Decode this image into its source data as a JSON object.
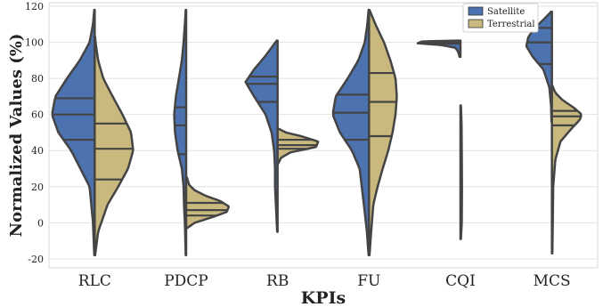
{
  "chart_data": {
    "type": "violin",
    "split": true,
    "xlabel": "KPIs",
    "ylabel": "Normalized Values (%)",
    "ylim": [
      -25,
      122
    ],
    "yticks": [
      -20,
      0,
      20,
      40,
      60,
      80,
      100,
      120
    ],
    "grid": true,
    "legend_position": "top-right",
    "categories": [
      "RLC",
      "PDCP",
      "RB",
      "FU",
      "CQI",
      "MCS"
    ],
    "series": [
      {
        "name": "Satellite",
        "color": "#4c72b0",
        "side": "left",
        "violins": [
          {
            "min": -18,
            "max": 118,
            "quartiles": [
              46,
              60,
              69
            ],
            "shape": [
              [
                -18,
                0.01
              ],
              [
                0,
                0.04
              ],
              [
                20,
                0.12
              ],
              [
                40,
                0.55
              ],
              [
                50,
                0.85
              ],
              [
                60,
                1.0
              ],
              [
                70,
                0.92
              ],
              [
                80,
                0.65
              ],
              [
                90,
                0.35
              ],
              [
                100,
                0.12
              ],
              [
                110,
                0.04
              ],
              [
                118,
                0.01
              ]
            ]
          },
          {
            "min": -18,
            "max": 118,
            "quartiles": [
              38,
              54,
              64
            ],
            "shape": [
              [
                -18,
                0.01
              ],
              [
                0,
                0.03
              ],
              [
                10,
                0.05
              ],
              [
                20,
                0.06
              ],
              [
                30,
                0.1
              ],
              [
                40,
                0.2
              ],
              [
                50,
                0.26
              ],
              [
                60,
                0.28
              ],
              [
                70,
                0.24
              ],
              [
                80,
                0.17
              ],
              [
                90,
                0.1
              ],
              [
                100,
                0.06
              ],
              [
                110,
                0.03
              ],
              [
                118,
                0.01
              ]
            ]
          },
          {
            "min": -5,
            "max": 101,
            "quartiles": [
              67,
              77,
              81
            ],
            "shape": [
              [
                -5,
                0.01
              ],
              [
                10,
                0.04
              ],
              [
                20,
                0.06
              ],
              [
                30,
                0.06
              ],
              [
                40,
                0.08
              ],
              [
                50,
                0.14
              ],
              [
                60,
                0.28
              ],
              [
                70,
                0.55
              ],
              [
                78,
                0.75
              ],
              [
                85,
                0.55
              ],
              [
                92,
                0.3
              ],
              [
                101,
                0.02
              ]
            ]
          },
          {
            "min": -18,
            "max": 118,
            "quartiles": [
              46,
              61,
              71
            ],
            "shape": [
              [
                -18,
                0.01
              ],
              [
                -5,
                0.05
              ],
              [
                10,
                0.12
              ],
              [
                20,
                0.17
              ],
              [
                30,
                0.22
              ],
              [
                40,
                0.4
              ],
              [
                50,
                0.68
              ],
              [
                60,
                0.85
              ],
              [
                70,
                0.78
              ],
              [
                80,
                0.5
              ],
              [
                90,
                0.25
              ],
              [
                100,
                0.1
              ],
              [
                110,
                0.04
              ],
              [
                118,
                0.01
              ]
            ]
          },
          {
            "min": 92,
            "max": 101,
            "quartiles": [
              99.3,
              99.8,
              100.2
            ],
            "shape": [
              [
                92,
                0.02
              ],
              [
                95,
                0.06
              ],
              [
                97,
                0.12
              ],
              [
                98.5,
                0.45
              ],
              [
                99.5,
                1.0
              ],
              [
                100.5,
                0.9
              ],
              [
                101,
                0.05
              ]
            ]
          },
          {
            "min": 56,
            "max": 117,
            "quartiles": [
              88,
              100,
              108
            ],
            "shape": [
              [
                56,
                0.01
              ],
              [
                65,
                0.02
              ],
              [
                75,
                0.06
              ],
              [
                85,
                0.2
              ],
              [
                92,
                0.45
              ],
              [
                98,
                0.6
              ],
              [
                103,
                0.55
              ],
              [
                108,
                0.4
              ],
              [
                113,
                0.18
              ],
              [
                117,
                0.02
              ]
            ]
          }
        ]
      },
      {
        "name": "Terrestrial",
        "color": "#c9b97f",
        "side": "right",
        "violins": [
          {
            "min": -18,
            "max": 103,
            "quartiles": [
              24,
              41,
              55
            ],
            "shape": [
              [
                -18,
                0.01
              ],
              [
                -5,
                0.08
              ],
              [
                10,
                0.3
              ],
              [
                20,
                0.55
              ],
              [
                30,
                0.78
              ],
              [
                40,
                0.9
              ],
              [
                50,
                0.85
              ],
              [
                60,
                0.65
              ],
              [
                70,
                0.42
              ],
              [
                80,
                0.2
              ],
              [
                90,
                0.08
              ],
              [
                100,
                0.02
              ],
              [
                103,
                0.01
              ]
            ]
          },
          {
            "min": -3,
            "max": 25,
            "quartiles": [
              4,
              7,
              11
            ],
            "shape": [
              [
                -3,
                0.02
              ],
              [
                0,
                0.2
              ],
              [
                3,
                0.6
              ],
              [
                6,
                0.95
              ],
              [
                9,
                1.0
              ],
              [
                12,
                0.8
              ],
              [
                15,
                0.45
              ],
              [
                18,
                0.2
              ],
              [
                21,
                0.07
              ],
              [
                25,
                0.02
              ]
            ]
          },
          {
            "min": 33,
            "max": 52,
            "quartiles": [
              41,
              43,
              46
            ],
            "shape": [
              [
                33,
                0.02
              ],
              [
                36,
                0.08
              ],
              [
                39,
                0.3
              ],
              [
                42,
                0.9
              ],
              [
                45,
                0.95
              ],
              [
                48,
                0.55
              ],
              [
                50,
                0.2
              ],
              [
                52,
                0.03
              ]
            ]
          },
          {
            "min": -18,
            "max": 118,
            "quartiles": [
              48,
              67,
              83
            ],
            "shape": [
              [
                -18,
                0.01
              ],
              [
                -5,
                0.05
              ],
              [
                10,
                0.1
              ],
              [
                20,
                0.2
              ],
              [
                30,
                0.32
              ],
              [
                40,
                0.45
              ],
              [
                50,
                0.55
              ],
              [
                60,
                0.62
              ],
              [
                70,
                0.65
              ],
              [
                80,
                0.62
              ],
              [
                90,
                0.5
              ],
              [
                100,
                0.35
              ],
              [
                110,
                0.15
              ],
              [
                118,
                0.01
              ]
            ]
          },
          {
            "min": -9,
            "max": 65,
            "quartiles": [
              10,
              27,
              48
            ],
            "shape": [
              [
                -9,
                0.01
              ],
              [
                0,
                0.03
              ],
              [
                20,
                0.035
              ],
              [
                40,
                0.03
              ],
              [
                55,
                0.025
              ],
              [
                65,
                0.01
              ]
            ]
          },
          {
            "min": -17,
            "max": 76,
            "quartiles": [
              54,
              59,
              62
            ],
            "shape": [
              [
                -17,
                0.01
              ],
              [
                0,
                0.02
              ],
              [
                20,
                0.03
              ],
              [
                35,
                0.08
              ],
              [
                45,
                0.2
              ],
              [
                52,
                0.45
              ],
              [
                57,
                0.65
              ],
              [
                60,
                0.7
              ],
              [
                64,
                0.5
              ],
              [
                68,
                0.25
              ],
              [
                72,
                0.08
              ],
              [
                76,
                0.01
              ]
            ]
          }
        ]
      }
    ]
  }
}
